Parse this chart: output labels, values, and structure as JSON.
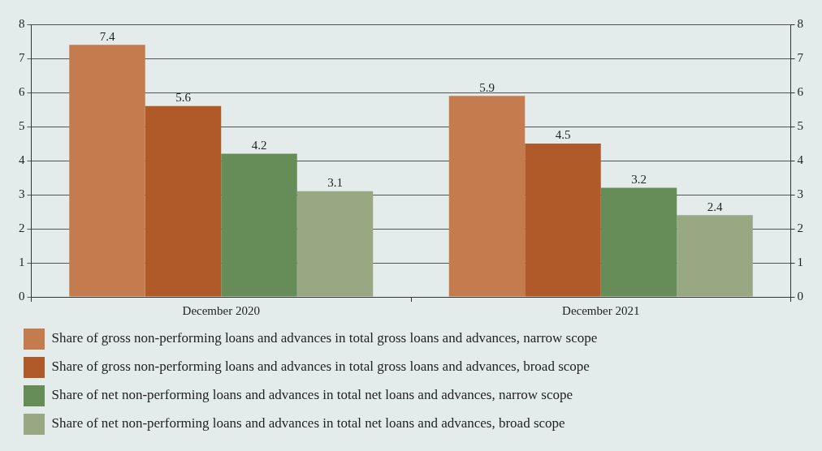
{
  "chart_data": {
    "type": "bar",
    "categories": [
      "December 2020",
      "December 2021"
    ],
    "series": [
      {
        "name": "Share of gross non-performing loans and advances in total gross loans and advances, narrow scope",
        "color": "#c47c4e",
        "values": [
          7.4,
          5.9
        ]
      },
      {
        "name": "Share of gross non-performing loans and advances in total gross loans and advances, broad scope",
        "color": "#b05a2a",
        "values": [
          5.6,
          4.5
        ]
      },
      {
        "name": "Share of net non-performing loans and advances in total net loans and advances, narrow scope",
        "color": "#668c58",
        "values": [
          4.2,
          3.2
        ]
      },
      {
        "name": "Share of net non-performing loans and advances in total net loans and advances, broad scope",
        "color": "#97a883",
        "values": [
          3.1,
          2.4
        ]
      }
    ],
    "ylim": [
      0,
      8
    ],
    "yticks": [
      0,
      1,
      2,
      3,
      4,
      5,
      6,
      7,
      8
    ],
    "y2lim": [
      0,
      8
    ],
    "y2ticks": [
      0,
      1,
      2,
      3,
      4,
      5,
      6,
      7,
      8
    ],
    "grid": "y",
    "legend": "bottom",
    "data_labels": true
  }
}
